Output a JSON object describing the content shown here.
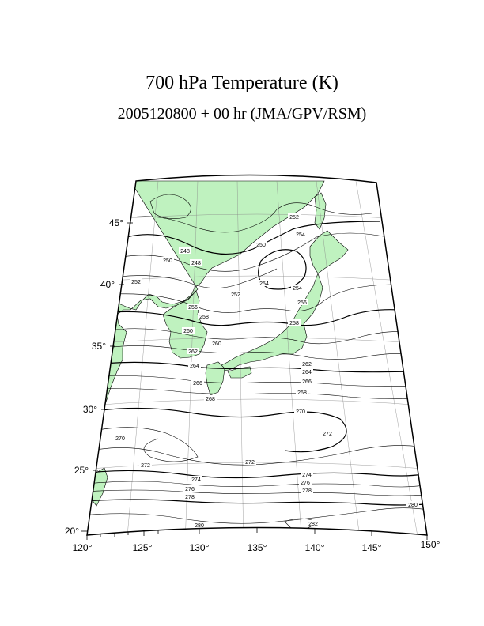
{
  "map": {
    "title": "700 hPa Temperature (K)",
    "subtitle": "2005120800 + 00 hr (JMA/GPV/RSM)",
    "projection": "conic",
    "variable": "temperature",
    "level": "700 hPa",
    "units": "K",
    "land_color": "#bff2bf",
    "contour_color": "#000000",
    "lon_labels": [
      "120°",
      "125°",
      "130°",
      "135°",
      "140°",
      "145°",
      "150°"
    ],
    "lat_labels": [
      "20°",
      "25°",
      "30°",
      "35°",
      "40°",
      "45°"
    ],
    "contour_labels": [
      "248",
      "248",
      "250",
      "250",
      "252",
      "252",
      "252",
      "254",
      "254",
      "254",
      "256",
      "256",
      "258",
      "258",
      "260",
      "260",
      "262",
      "262",
      "264",
      "264",
      "266",
      "266",
      "268",
      "268",
      "270",
      "270",
      "272",
      "272",
      "272",
      "274",
      "274",
      "276",
      "276",
      "278",
      "278",
      "280",
      "280",
      "282"
    ]
  }
}
